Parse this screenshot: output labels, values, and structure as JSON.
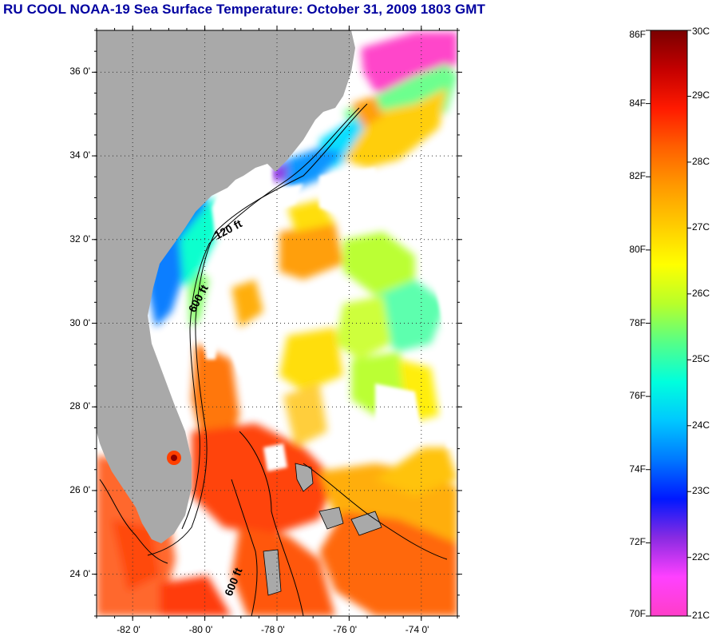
{
  "title": "RU COOL  NOAA-19  Sea Surface Temperature:  October 31, 2009 1803 GMT",
  "map": {
    "lon_range": [
      -83,
      -73
    ],
    "lat_range": [
      23,
      37
    ],
    "lat_ticks": [
      {
        "value": 36,
        "label": "36 0'"
      },
      {
        "value": 34,
        "label": "34 0'"
      },
      {
        "value": 32,
        "label": "32 0'"
      },
      {
        "value": 30,
        "label": "30 0'"
      },
      {
        "value": 28,
        "label": "28 0'"
      },
      {
        "value": 26,
        "label": "26 0'"
      },
      {
        "value": 24,
        "label": "24 0'"
      }
    ],
    "lon_ticks": [
      {
        "value": -82,
        "label": "-82 0'"
      },
      {
        "value": -80,
        "label": "-80 0'"
      },
      {
        "value": -78,
        "label": "-78 0'"
      },
      {
        "value": -76,
        "label": "-76 0'"
      },
      {
        "value": -74,
        "label": "-74 0'"
      }
    ],
    "contours": [
      {
        "label": "120 ft"
      },
      {
        "label": "600 ft"
      },
      {
        "label": "600 ft"
      }
    ],
    "colors": {
      "land": "#a9a9a9",
      "cloud": "#ffffff",
      "grid": "#333333"
    }
  },
  "colorbar": {
    "fahrenheit_labels": [
      "86F",
      "84F",
      "82F",
      "80F",
      "78F",
      "76F",
      "74F",
      "72F",
      "70F"
    ],
    "celsius_labels": [
      "30C",
      "29C",
      "28C",
      "27C",
      "26C",
      "25C",
      "24C",
      "23C",
      "22C",
      "21C"
    ],
    "colors_top_to_bottom": [
      "#7a0000",
      "#c40000",
      "#ff1a00",
      "#ff6000",
      "#ff9a00",
      "#ffcc00",
      "#ffff00",
      "#b8ff2a",
      "#55ff88",
      "#00ffdd",
      "#00c8ff",
      "#0078ff",
      "#0018ff",
      "#8a2be2",
      "#ff40ff",
      "#ff3ec8"
    ]
  }
}
